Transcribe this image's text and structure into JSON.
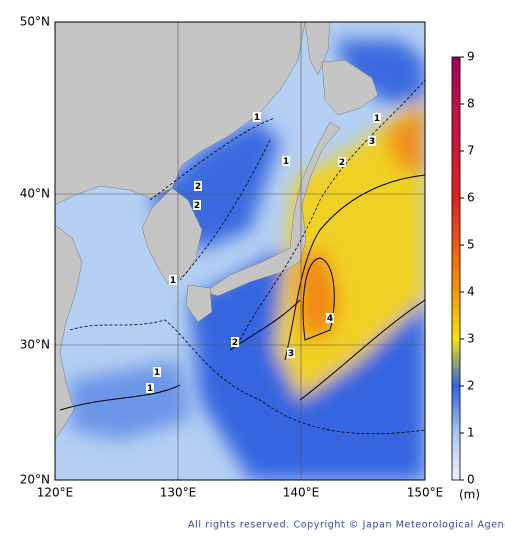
{
  "map": {
    "lat_labels": [
      "50°N",
      "40°N",
      "30°N",
      "20°N"
    ],
    "lon_labels": [
      "120°E",
      "130°E",
      "140°E",
      "150°E"
    ],
    "contour_labels": [
      "1",
      "2",
      "2",
      "1",
      "2",
      "1",
      "3",
      "1",
      "2",
      "3",
      "4",
      "1",
      "1"
    ],
    "colorbar": {
      "ticks": [
        0,
        1,
        2,
        3,
        4,
        5,
        6,
        7,
        8,
        9
      ],
      "unit": "(m)"
    }
  },
  "footer": "All rights reserved. Copyright © Japan Meteorological Agency"
}
